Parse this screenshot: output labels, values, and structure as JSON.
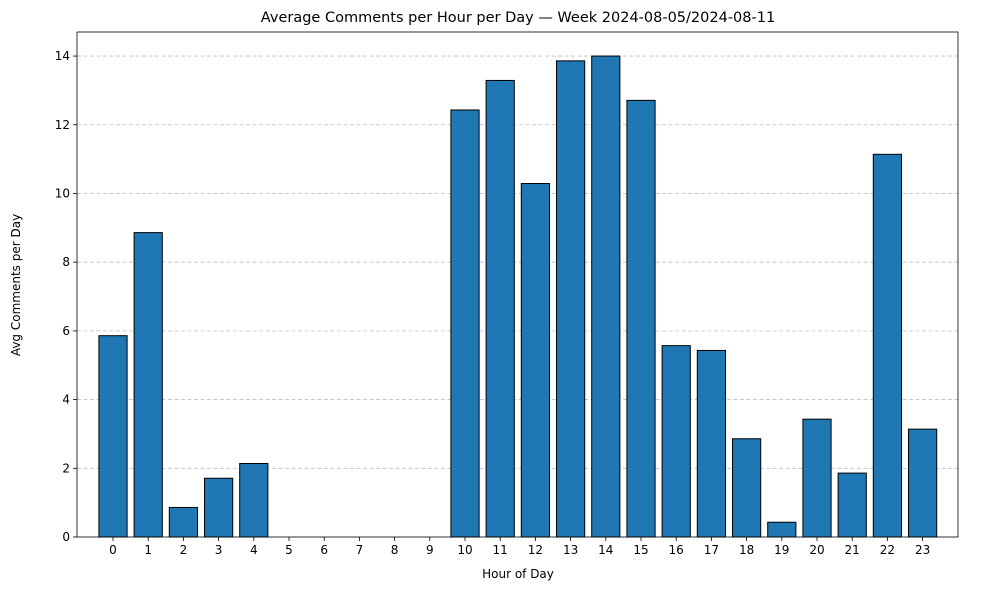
{
  "chart_data": {
    "type": "bar",
    "title": "Average Comments per Hour per Day — Week 2024-08-05/2024-08-11",
    "xlabel": "Hour of Day",
    "ylabel": "Avg Comments per Day",
    "categories": [
      "0",
      "1",
      "2",
      "3",
      "4",
      "5",
      "6",
      "7",
      "8",
      "9",
      "10",
      "11",
      "12",
      "13",
      "14",
      "15",
      "16",
      "17",
      "18",
      "19",
      "20",
      "21",
      "22",
      "23"
    ],
    "values": [
      5.86,
      8.86,
      0.86,
      1.71,
      2.14,
      0,
      0,
      0,
      0,
      0,
      12.43,
      13.29,
      10.29,
      13.86,
      14.0,
      12.71,
      5.57,
      5.43,
      2.86,
      0.43,
      3.43,
      1.86,
      11.14,
      3.14
    ],
    "ylim": [
      0,
      14.7
    ],
    "yticks": [
      0,
      2,
      4,
      6,
      8,
      10,
      12,
      14
    ],
    "grid": "y-dashed",
    "bar_color": "#1f77b4",
    "edge_color": "#000000",
    "grid_color": "#c0c0c0"
  }
}
